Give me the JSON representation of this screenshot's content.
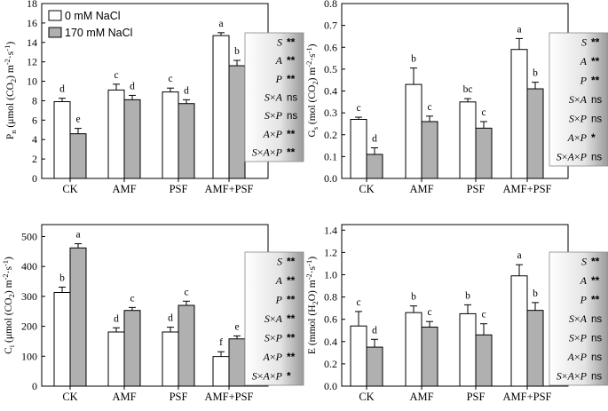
{
  "chart_data": [
    {
      "id": "pn",
      "type": "bar",
      "categories": [
        "CK",
        "AMF",
        "PSF",
        "AMF+PSF"
      ],
      "ylim": [
        0,
        18
      ],
      "yticks": [
        0,
        2,
        4,
        6,
        8,
        10,
        12,
        14,
        16,
        18
      ],
      "ytick_labels": [
        "0",
        "2",
        "4",
        "6",
        "8",
        "10",
        "12",
        "14",
        "16",
        "18"
      ],
      "ylabel": "Pn (μmol (CO2) m⁻²·s⁻¹)",
      "ylabel_parts": [
        "P",
        "n",
        " (μmol (CO",
        "2",
        ") m",
        "-2",
        "·s",
        "-1",
        ")"
      ],
      "legend": [
        "0 mM NaCl",
        "170 mM NaCl"
      ],
      "series": [
        {
          "name": "0 mM NaCl",
          "color": "#ffffff",
          "values": [
            7.9,
            9.1,
            8.9,
            14.7
          ],
          "errors": [
            0.35,
            0.6,
            0.4,
            0.3
          ],
          "letters": [
            "d",
            "c",
            "c",
            "a"
          ]
        },
        {
          "name": "170 mM NaCl",
          "color": "#b0b0b0",
          "values": [
            4.6,
            8.1,
            7.7,
            11.6
          ],
          "errors": [
            0.55,
            0.45,
            0.4,
            0.55
          ],
          "letters": [
            "e",
            "d",
            "d",
            "b"
          ]
        }
      ],
      "stats": [
        {
          "factor": [
            "S"
          ],
          "value": "**"
        },
        {
          "factor": [
            "A"
          ],
          "value": "**"
        },
        {
          "factor": [
            "P"
          ],
          "value": "**"
        },
        {
          "factor": [
            "S",
            "A"
          ],
          "value": "ns"
        },
        {
          "factor": [
            "S",
            "P"
          ],
          "value": "ns"
        },
        {
          "factor": [
            "A",
            "P"
          ],
          "value": "**"
        },
        {
          "factor": [
            "S",
            "A",
            "P"
          ],
          "value": "**"
        }
      ]
    },
    {
      "id": "gs",
      "type": "bar",
      "categories": [
        "CK",
        "AMF",
        "PSF",
        "AMF+PSF"
      ],
      "ylim": [
        0,
        0.8
      ],
      "yticks": [
        0,
        0.1,
        0.2,
        0.3,
        0.4,
        0.5,
        0.6,
        0.7,
        0.8
      ],
      "ytick_labels": [
        "0.0",
        "0.1",
        "0.2",
        "0.3",
        "0.4",
        "0.5",
        "0.6",
        "0.7",
        "0.8"
      ],
      "ylabel": "Gs (mol (CO2) m⁻²·s⁻¹)",
      "ylabel_parts": [
        "G",
        "s",
        " (mol (CO",
        "2",
        ") m",
        "-2",
        "·s",
        "-1",
        ")"
      ],
      "series": [
        {
          "name": "0 mM NaCl",
          "color": "#ffffff",
          "values": [
            0.27,
            0.43,
            0.35,
            0.59
          ],
          "errors": [
            0.01,
            0.075,
            0.015,
            0.05
          ],
          "letters": [
            "c",
            "b",
            "bc",
            "a"
          ]
        },
        {
          "name": "170 mM NaCl",
          "color": "#b0b0b0",
          "values": [
            0.11,
            0.26,
            0.23,
            0.41
          ],
          "errors": [
            0.03,
            0.025,
            0.03,
            0.03
          ],
          "letters": [
            "d",
            "c",
            "c",
            "b"
          ]
        }
      ],
      "stats": [
        {
          "factor": [
            "S"
          ],
          "value": "**"
        },
        {
          "factor": [
            "A"
          ],
          "value": "**"
        },
        {
          "factor": [
            "P"
          ],
          "value": "**"
        },
        {
          "factor": [
            "S",
            "A"
          ],
          "value": "ns"
        },
        {
          "factor": [
            "S",
            "P"
          ],
          "value": "ns"
        },
        {
          "factor": [
            "A",
            "P"
          ],
          "value": "*"
        },
        {
          "factor": [
            "S",
            "A",
            "P"
          ],
          "value": "ns"
        }
      ]
    },
    {
      "id": "ci",
      "type": "bar",
      "categories": [
        "CK",
        "AMF",
        "PSF",
        "AMF+PSF"
      ],
      "ylim": [
        0,
        540
      ],
      "yticks": [
        0,
        100,
        200,
        300,
        400,
        500
      ],
      "ytick_labels": [
        "0",
        "100",
        "200",
        "300",
        "400",
        "500"
      ],
      "ylabel": "Ci (μmol (CO2) m⁻²·s⁻¹)",
      "ylabel_parts": [
        "C",
        "i",
        " (μmol (CO",
        "2",
        ") m",
        "-2",
        "·s",
        "-1",
        ")"
      ],
      "series": [
        {
          "name": "0 mM NaCl",
          "color": "#ffffff",
          "values": [
            313,
            181,
            181,
            99
          ],
          "errors": [
            18,
            14,
            16,
            16
          ],
          "letters": [
            "b",
            "d",
            "d",
            "f"
          ]
        },
        {
          "name": "170 mM NaCl",
          "color": "#b0b0b0",
          "values": [
            462,
            253,
            270,
            158
          ],
          "errors": [
            14,
            10,
            14,
            10
          ],
          "letters": [
            "a",
            "c",
            "c",
            "e"
          ]
        }
      ],
      "stats": [
        {
          "factor": [
            "S"
          ],
          "value": "**"
        },
        {
          "factor": [
            "A"
          ],
          "value": "**"
        },
        {
          "factor": [
            "P"
          ],
          "value": "**"
        },
        {
          "factor": [
            "S",
            "A"
          ],
          "value": "**"
        },
        {
          "factor": [
            "S",
            "P"
          ],
          "value": "**"
        },
        {
          "factor": [
            "A",
            "P"
          ],
          "value": "**"
        },
        {
          "factor": [
            "S",
            "A",
            "P"
          ],
          "value": "*"
        }
      ]
    },
    {
      "id": "e",
      "type": "bar",
      "categories": [
        "CK",
        "AMF",
        "PSF",
        "AMF+PSF"
      ],
      "ylim": [
        0,
        1.45
      ],
      "yticks": [
        0,
        0.2,
        0.4,
        0.6,
        0.8,
        1.0,
        1.2,
        1.4
      ],
      "ytick_labels": [
        "0.0",
        "0.2",
        "0.4",
        "0.6",
        "0.8",
        "1.0",
        "1.2",
        "1.4"
      ],
      "ylabel": "E (mmol (H2O) m⁻²·s⁻¹)",
      "ylabel_parts": [
        "E (mmol (H",
        "2",
        "O) m",
        "-2",
        "·s",
        "-1",
        ")"
      ],
      "series": [
        {
          "name": "0 mM NaCl",
          "color": "#ffffff",
          "values": [
            0.54,
            0.66,
            0.65,
            0.99
          ],
          "errors": [
            0.13,
            0.06,
            0.08,
            0.1
          ],
          "letters": [
            "c",
            "b",
            "b",
            "a"
          ]
        },
        {
          "name": "170 mM NaCl",
          "color": "#b0b0b0",
          "values": [
            0.35,
            0.53,
            0.46,
            0.68
          ],
          "errors": [
            0.07,
            0.05,
            0.1,
            0.07
          ],
          "letters": [
            "d",
            "c",
            "c",
            "b"
          ]
        }
      ],
      "stats": [
        {
          "factor": [
            "S"
          ],
          "value": "**"
        },
        {
          "factor": [
            "A"
          ],
          "value": "**"
        },
        {
          "factor": [
            "P"
          ],
          "value": "**"
        },
        {
          "factor": [
            "S",
            "A"
          ],
          "value": "ns"
        },
        {
          "factor": [
            "S",
            "P"
          ],
          "value": "ns"
        },
        {
          "factor": [
            "A",
            "P"
          ],
          "value": "ns"
        },
        {
          "factor": [
            "S",
            "A",
            "P"
          ],
          "value": "ns"
        }
      ]
    }
  ]
}
